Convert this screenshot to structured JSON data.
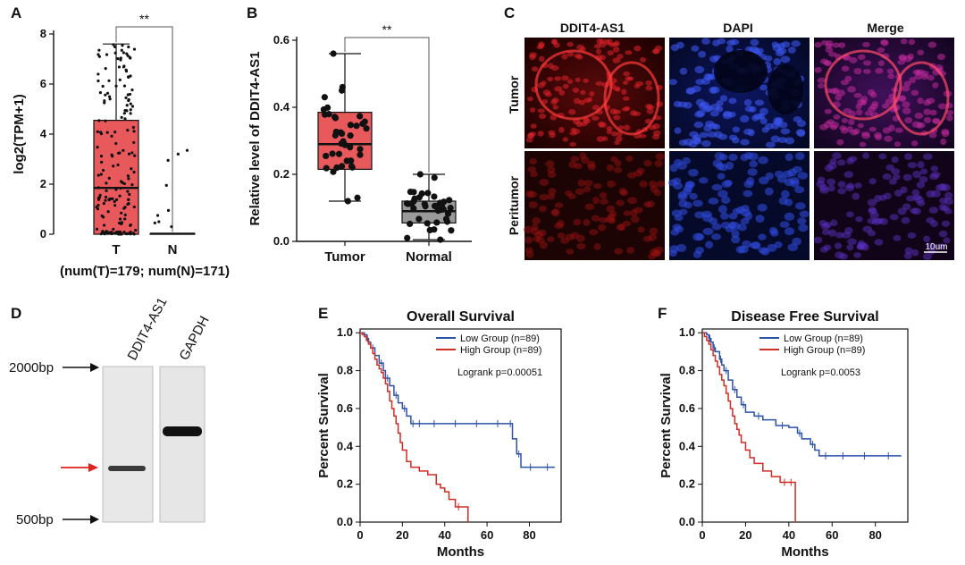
{
  "colors": {
    "tumor_box": "#e8595c",
    "normal_box": "#9a9a9a",
    "low_group": "#2c52a8",
    "high_group": "#d12b25",
    "arrow_red": "#e0211d"
  },
  "chart_data": [
    {
      "panel": "A",
      "type": "box",
      "ylabel": "log2(TPM+1)",
      "ylim": [
        0,
        8
      ],
      "yticks": [
        "0",
        "2",
        "4",
        "6",
        "8"
      ],
      "categories": [
        "T",
        "N"
      ],
      "boxes": [
        {
          "name": "T",
          "q1": 0,
          "median": 1.85,
          "q3": 4.55,
          "whisker_low": 0,
          "whisker_high": 7.6
        },
        {
          "name": "N",
          "q1": 0,
          "median": 0.02,
          "q3": 0.02,
          "whisker_low": 0,
          "whisker_high": 0.02
        }
      ],
      "footnote": "(num(T)=179; num(N)=171)",
      "significance": "**"
    },
    {
      "panel": "B",
      "type": "box",
      "ylabel": "Relative level of DDIT4-AS1",
      "ylim": [
        0,
        0.6
      ],
      "yticks": [
        "0.0",
        "0.2",
        "0.4",
        "0.6"
      ],
      "categories": [
        "Tumor",
        "Normal"
      ],
      "boxes": [
        {
          "name": "Tumor",
          "q1": 0.215,
          "median": 0.29,
          "q3": 0.385,
          "whisker_low": 0.12,
          "whisker_high": 0.56
        },
        {
          "name": "Normal",
          "q1": 0.055,
          "median": 0.09,
          "q3": 0.12,
          "whisker_low": 0.005,
          "whisker_high": 0.2
        }
      ],
      "significance": "**"
    },
    {
      "panel": "E",
      "type": "line",
      "title": "Overall Survival",
      "xlabel": "Months",
      "ylabel": "Percent Survival",
      "xlim": [
        0,
        95
      ],
      "ylim": [
        0,
        1.02
      ],
      "xticks": [
        "0",
        "20",
        "40",
        "60",
        "80"
      ],
      "yticks": [
        "0.0",
        "0.2",
        "0.4",
        "0.6",
        "0.8",
        "1.0"
      ],
      "legend": [
        "Low Group (n=89)",
        "High Group (n=89)"
      ],
      "annotation": "Logrank p=0.00051",
      "series": [
        {
          "name": "Low Group (n=89)",
          "x": [
            0,
            2,
            3,
            4,
            5,
            7,
            9,
            11,
            12,
            14,
            16,
            18,
            20,
            22,
            24,
            26,
            30,
            40,
            50,
            60,
            70,
            72,
            74,
            76,
            85,
            92
          ],
          "y": [
            1.0,
            0.99,
            0.97,
            0.95,
            0.92,
            0.88,
            0.84,
            0.8,
            0.76,
            0.72,
            0.67,
            0.63,
            0.6,
            0.56,
            0.52,
            0.52,
            0.52,
            0.52,
            0.52,
            0.52,
            0.52,
            0.44,
            0.36,
            0.29,
            0.29,
            0.29
          ]
        },
        {
          "name": "High Group (n=89)",
          "x": [
            0,
            1,
            2,
            3,
            4,
            5,
            6,
            7,
            8,
            9,
            10,
            11,
            12,
            13,
            14,
            15,
            16,
            17,
            18,
            19,
            20,
            22,
            24,
            28,
            32,
            36,
            38,
            40,
            42,
            45,
            48,
            51
          ],
          "y": [
            1.0,
            0.99,
            0.98,
            0.96,
            0.94,
            0.92,
            0.89,
            0.86,
            0.83,
            0.81,
            0.79,
            0.76,
            0.73,
            0.69,
            0.64,
            0.6,
            0.56,
            0.52,
            0.47,
            0.42,
            0.38,
            0.32,
            0.29,
            0.27,
            0.25,
            0.2,
            0.18,
            0.16,
            0.12,
            0.08,
            0.08,
            0.0
          ]
        }
      ]
    },
    {
      "panel": "F",
      "type": "line",
      "title": "Disease Free Survival",
      "xlabel": "Months",
      "ylabel": "Percent Survival",
      "xlim": [
        0,
        95
      ],
      "ylim": [
        0,
        1.02
      ],
      "xticks": [
        "0",
        "20",
        "40",
        "60",
        "80"
      ],
      "yticks": [
        "0.0",
        "0.2",
        "0.4",
        "0.6",
        "0.8",
        "1.0"
      ],
      "legend": [
        "Low Group (n=89)",
        "High Group (n=89)"
      ],
      "annotation": "Logrank p=0.0053",
      "series": [
        {
          "name": "Low Group (n=89)",
          "x": [
            0,
            2,
            3,
            4,
            5,
            6,
            8,
            9,
            10,
            12,
            14,
            16,
            18,
            20,
            24,
            28,
            34,
            40,
            44,
            46,
            50,
            52,
            54,
            60,
            70,
            80,
            92
          ],
          "y": [
            1.0,
            0.99,
            0.97,
            0.95,
            0.92,
            0.9,
            0.86,
            0.83,
            0.8,
            0.75,
            0.7,
            0.66,
            0.62,
            0.58,
            0.56,
            0.54,
            0.51,
            0.5,
            0.47,
            0.44,
            0.41,
            0.38,
            0.35,
            0.35,
            0.35,
            0.35,
            0.35
          ]
        },
        {
          "name": "High Group (n=89)",
          "x": [
            0,
            1,
            2,
            3,
            4,
            5,
            6,
            7,
            8,
            9,
            10,
            11,
            12,
            13,
            14,
            15,
            16,
            17,
            18,
            20,
            22,
            24,
            28,
            32,
            36,
            40,
            42,
            43
          ],
          "y": [
            1.0,
            0.98,
            0.96,
            0.94,
            0.91,
            0.88,
            0.85,
            0.82,
            0.78,
            0.75,
            0.72,
            0.68,
            0.64,
            0.6,
            0.56,
            0.52,
            0.49,
            0.46,
            0.42,
            0.38,
            0.34,
            0.31,
            0.27,
            0.24,
            0.21,
            0.21,
            0.21,
            0.0
          ]
        }
      ]
    }
  ],
  "panel_c": {
    "label": "C",
    "columns": [
      "DDIT4-AS1",
      "DAPI",
      "Merge"
    ],
    "rows": [
      "Tumor",
      "Peritumor"
    ],
    "scale_bar": "10um"
  },
  "panel_d": {
    "label": "D",
    "lanes": [
      "DDIT4-AS1",
      "GAPDH"
    ],
    "markers": [
      "2000bp",
      "500bp"
    ]
  }
}
